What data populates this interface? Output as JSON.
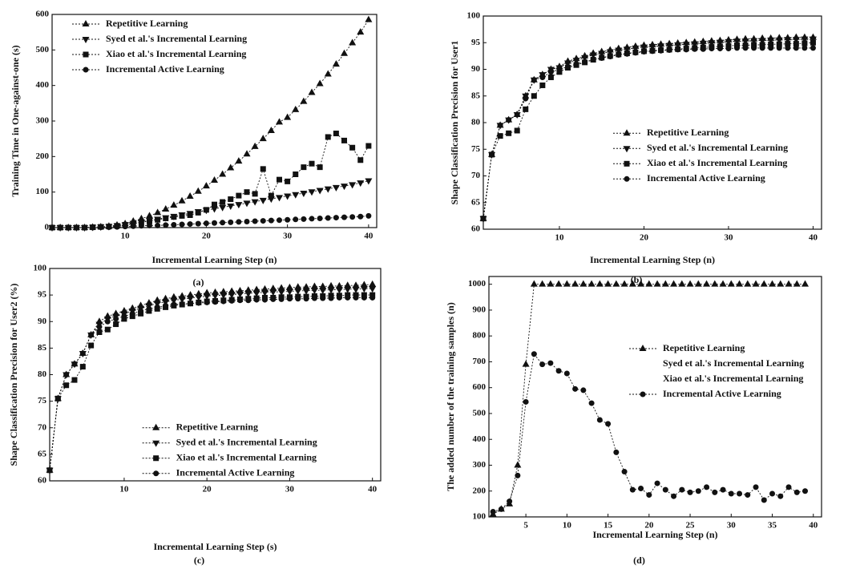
{
  "chart_data": [
    {
      "type": "line",
      "caption": "(a)",
      "xlabel": "Incremental Learning Step (n)",
      "ylabel": "Training Time in One-against-one (s)",
      "x": [
        1,
        2,
        3,
        4,
        5,
        6,
        7,
        8,
        9,
        10,
        11,
        12,
        13,
        14,
        15,
        16,
        17,
        18,
        19,
        20,
        21,
        22,
        23,
        24,
        25,
        26,
        27,
        28,
        29,
        30,
        31,
        32,
        33,
        34,
        35,
        36,
        37,
        38,
        39,
        40
      ],
      "xlim": [
        1,
        41
      ],
      "ylim": [
        0,
        600
      ],
      "xticks": [
        10,
        20,
        30,
        40
      ],
      "yticks": [
        0,
        100,
        200,
        300,
        400,
        500,
        600
      ],
      "legend": "upper left",
      "series": [
        {
          "name": "Repetitive Learning",
          "color": "#111111",
          "marker": "triangle-up",
          "values": [
            0,
            0,
            0,
            0,
            0,
            1,
            2,
            4,
            7,
            11,
            18,
            25,
            33,
            42,
            52,
            63,
            75,
            88,
            102,
            117,
            133,
            150,
            168,
            187,
            207,
            228,
            250,
            273,
            297,
            310,
            332,
            355,
            380,
            405,
            432,
            460,
            490,
            520,
            550,
            585
          ]
        },
        {
          "name": "Syed et al.'s Incremental Learning",
          "color": "#111111",
          "marker": "triangle-down",
          "values": [
            0,
            0,
            0,
            0,
            0,
            1,
            2,
            3,
            5,
            8,
            12,
            16,
            20,
            24,
            28,
            32,
            36,
            40,
            45,
            49,
            53,
            57,
            61,
            65,
            69,
            73,
            77,
            81,
            85,
            89,
            93,
            97,
            101,
            105,
            109,
            113,
            117,
            121,
            126,
            132
          ]
        },
        {
          "name": "Xiao et al.'s Incremental Learning",
          "color": "#111111",
          "marker": "square",
          "values": [
            0,
            0,
            0,
            0,
            0,
            1,
            2,
            3,
            5,
            8,
            11,
            15,
            18,
            22,
            26,
            30,
            33,
            35,
            42,
            50,
            65,
            72,
            80,
            90,
            100,
            95,
            165,
            90,
            135,
            130,
            150,
            170,
            180,
            170,
            255,
            265,
            245,
            225,
            190,
            230
          ]
        },
        {
          "name": "Incremental Active Learning",
          "color": "#111111",
          "marker": "circle",
          "values": [
            0,
            0,
            0,
            0,
            0,
            0,
            1,
            1,
            2,
            3,
            4,
            5,
            6,
            6,
            7,
            8,
            9,
            10,
            11,
            12,
            13,
            14,
            15,
            16,
            17,
            18,
            19,
            20,
            21,
            22,
            23,
            24,
            25,
            26,
            27,
            28,
            29,
            30,
            31,
            33
          ]
        }
      ]
    },
    {
      "type": "line",
      "caption": "(b)",
      "xlabel": "Incremental Learning Step (n)",
      "ylabel": "Shape Classification Precision for User1",
      "x": [
        1,
        2,
        3,
        4,
        5,
        6,
        7,
        8,
        9,
        10,
        11,
        12,
        13,
        14,
        15,
        16,
        17,
        18,
        19,
        20,
        21,
        22,
        23,
        24,
        25,
        26,
        27,
        28,
        29,
        30,
        31,
        32,
        33,
        34,
        35,
        36,
        37,
        38,
        39,
        40
      ],
      "xlim": [
        1,
        41
      ],
      "ylim": [
        60,
        100
      ],
      "xticks": [
        10,
        20,
        30,
        40
      ],
      "yticks": [
        60,
        65,
        70,
        75,
        80,
        85,
        90,
        95,
        100
      ],
      "legend": "lower right",
      "series": [
        {
          "name": "Repetitive Learning",
          "color": "#111111",
          "marker": "triangle-up",
          "values": [
            62,
            74,
            79.5,
            80.5,
            81.5,
            85,
            88,
            89,
            90,
            90.5,
            91.5,
            92,
            92.5,
            93,
            93.3,
            93.6,
            93.9,
            94.1,
            94.3,
            94.5,
            94.6,
            94.7,
            94.8,
            94.9,
            95,
            95.1,
            95.2,
            95.3,
            95.4,
            95.5,
            95.6,
            95.7,
            95.7,
            95.8,
            95.8,
            95.9,
            95.9,
            96,
            96,
            96
          ]
        },
        {
          "name": "Syed et al.'s Incremental Learning",
          "color": "#111111",
          "marker": "triangle-down",
          "values": [
            62,
            74,
            79.5,
            80.5,
            81.5,
            85,
            88,
            89,
            90,
            90.3,
            91.2,
            91.7,
            92.2,
            92.7,
            93,
            93.3,
            93.6,
            93.8,
            94,
            94.2,
            94.3,
            94.4,
            94.5,
            94.6,
            94.7,
            94.8,
            94.9,
            95,
            95.1,
            95.2,
            95.3,
            95.3,
            95.4,
            95.4,
            95.5,
            95.5,
            95.6,
            95.6,
            95.7,
            95.7
          ]
        },
        {
          "name": "Xiao et al.'s Incremental Learning",
          "color": "#111111",
          "marker": "square",
          "values": [
            62,
            74,
            77.5,
            78,
            78.5,
            82.5,
            85,
            87,
            88.5,
            89.5,
            90.3,
            90.8,
            91.3,
            91.8,
            92.2,
            92.5,
            92.8,
            93,
            93.2,
            93.4,
            93.5,
            93.6,
            93.7,
            93.8,
            93.9,
            94,
            94.1,
            94.2,
            94.3,
            94.4,
            94.5,
            94.5,
            94.6,
            94.6,
            94.7,
            94.7,
            94.8,
            94.8,
            94.9,
            95
          ]
        },
        {
          "name": "Incremental Active Learning",
          "color": "#111111",
          "marker": "circle",
          "values": [
            62,
            74,
            79.5,
            80.5,
            81.5,
            84.5,
            88,
            88.5,
            89.5,
            90,
            90.5,
            91,
            91.4,
            91.8,
            92.1,
            92.4,
            92.7,
            92.9,
            93.1,
            93.3,
            93.4,
            93.5,
            93.6,
            93.7,
            93.7,
            93.8,
            93.8,
            93.9,
            93.9,
            93.9,
            94,
            94,
            94,
            94,
            94,
            94,
            94,
            94,
            94,
            94
          ]
        }
      ]
    },
    {
      "type": "line",
      "caption": "(c)",
      "xlabel": "Incremental Learning Step (s)",
      "ylabel": "Shape Classification Precision for User2 (%)",
      "x": [
        1,
        2,
        3,
        4,
        5,
        6,
        7,
        8,
        9,
        10,
        11,
        12,
        13,
        14,
        15,
        16,
        17,
        18,
        19,
        20,
        21,
        22,
        23,
        24,
        25,
        26,
        27,
        28,
        29,
        30,
        31,
        32,
        33,
        34,
        35,
        36,
        37,
        38,
        39,
        40
      ],
      "xlim": [
        1,
        41
      ],
      "ylim": [
        60,
        100
      ],
      "xticks": [
        10,
        20,
        30,
        40
      ],
      "yticks": [
        60,
        65,
        70,
        75,
        80,
        85,
        90,
        95,
        100
      ],
      "legend": "lower center",
      "series": [
        {
          "name": "Repetitive Learning",
          "color": "#111111",
          "marker": "triangle-up",
          "values": [
            62,
            75.5,
            80,
            82,
            84,
            87.5,
            90,
            91,
            91.5,
            92,
            92.5,
            93,
            93.5,
            94,
            94.3,
            94.6,
            94.8,
            95,
            95.2,
            95.4,
            95.5,
            95.6,
            95.7,
            95.8,
            95.9,
            96,
            96.1,
            96.2,
            96.3,
            96.4,
            96.5,
            96.5,
            96.6,
            96.6,
            96.7,
            96.7,
            96.8,
            96.8,
            96.9,
            97
          ]
        },
        {
          "name": "Syed et al.'s Incremental Learning",
          "color": "#111111",
          "marker": "triangle-down",
          "values": [
            62,
            75.5,
            80,
            82,
            84,
            87.5,
            89.5,
            90.5,
            91,
            91.5,
            92,
            92.5,
            93,
            93.4,
            93.7,
            94,
            94.2,
            94.4,
            94.6,
            94.8,
            94.9,
            95,
            95.1,
            95.2,
            95.3,
            95.4,
            95.5,
            95.6,
            95.6,
            95.7,
            95.8,
            95.8,
            95.9,
            95.9,
            96,
            96,
            96.1,
            96.1,
            96.2,
            96.2
          ]
        },
        {
          "name": "Xiao et al.'s Incremental Learning",
          "color": "#111111",
          "marker": "square",
          "values": [
            62,
            75.5,
            78,
            79,
            81.5,
            85.5,
            88,
            88.5,
            89.5,
            90.5,
            91,
            91.5,
            92,
            92.4,
            92.7,
            93,
            93.2,
            93.4,
            93.6,
            93.8,
            93.9,
            94,
            94.1,
            94.2,
            94.3,
            94.4,
            94.5,
            94.5,
            94.6,
            94.6,
            94.7,
            94.7,
            94.8,
            94.8,
            94.9,
            94.9,
            95,
            95,
            95,
            95
          ]
        },
        {
          "name": "Incremental Active Learning",
          "color": "#111111",
          "marker": "circle",
          "values": [
            62,
            75.5,
            80,
            82,
            84,
            87.5,
            89,
            90,
            90.5,
            91,
            91.5,
            92,
            92.4,
            92.7,
            93,
            93.2,
            93.3,
            93.4,
            93.5,
            93.6,
            93.7,
            93.8,
            93.9,
            94,
            94,
            94.1,
            94.1,
            94.2,
            94.2,
            94.3,
            94.3,
            94.3,
            94.4,
            94.4,
            94.4,
            94.5,
            94.5,
            94.5,
            94.5,
            94.5
          ]
        }
      ]
    },
    {
      "type": "line",
      "caption": "(d)",
      "xlabel": "Incremental Learning Step (n)",
      "ylabel": "The added number of the training samples (n)",
      "x": [
        1,
        2,
        3,
        4,
        5,
        6,
        7,
        8,
        9,
        10,
        11,
        12,
        13,
        14,
        15,
        16,
        17,
        18,
        19,
        20,
        21,
        22,
        23,
        24,
        25,
        26,
        27,
        28,
        29,
        30,
        31,
        32,
        33,
        34,
        35,
        36,
        37,
        38,
        39
      ],
      "xlim": [
        0.5,
        41
      ],
      "ylim": [
        100,
        1030
      ],
      "xticks": [
        5,
        10,
        15,
        20,
        25,
        30,
        35,
        40
      ],
      "yticks": [
        100,
        200,
        300,
        400,
        500,
        600,
        700,
        800,
        900,
        1000
      ],
      "legend": "center right",
      "series": [
        {
          "name": "Repetitive Learning",
          "color": "#111111",
          "marker": "triangle-up",
          "values": [
            110,
            130,
            150,
            300,
            690,
            1000,
            1000,
            1000,
            1000,
            1000,
            1000,
            1000,
            1000,
            1000,
            1000,
            1000,
            1000,
            1000,
            1000,
            1000,
            1000,
            1000,
            1000,
            1000,
            1000,
            1000,
            1000,
            1000,
            1000,
            1000,
            1000,
            1000,
            1000,
            1000,
            1000,
            1000,
            1000,
            1000,
            1000
          ]
        },
        {
          "name": "Syed et al.'s Incremental Learning",
          "color": "#111111",
          "marker": "none",
          "values": [
            null,
            null,
            null,
            null,
            null,
            null,
            null,
            null,
            null,
            null,
            null,
            null,
            null,
            null,
            null,
            null,
            null,
            null,
            null,
            null,
            null,
            null,
            null,
            null,
            null,
            null,
            null,
            null,
            null,
            null,
            null,
            null,
            null,
            null,
            null,
            null,
            null,
            null,
            null
          ]
        },
        {
          "name": "Xiao et al.'s Incremental Learning",
          "color": "#111111",
          "marker": "none",
          "values": [
            null,
            null,
            null,
            null,
            null,
            null,
            null,
            null,
            null,
            null,
            null,
            null,
            null,
            null,
            null,
            null,
            null,
            null,
            null,
            null,
            null,
            null,
            null,
            null,
            null,
            null,
            null,
            null,
            null,
            null,
            null,
            null,
            null,
            null,
            null,
            null,
            null,
            null,
            null
          ]
        },
        {
          "name": "Incremental Active Learning",
          "color": "#111111",
          "marker": "circle",
          "values": [
            120,
            130,
            160,
            260,
            545,
            730,
            690,
            695,
            665,
            655,
            595,
            590,
            540,
            475,
            460,
            350,
            275,
            205,
            210,
            185,
            230,
            205,
            180,
            205,
            195,
            200,
            215,
            195,
            205,
            190,
            190,
            185,
            215,
            165,
            190,
            180,
            215,
            195,
            200
          ]
        }
      ]
    }
  ]
}
